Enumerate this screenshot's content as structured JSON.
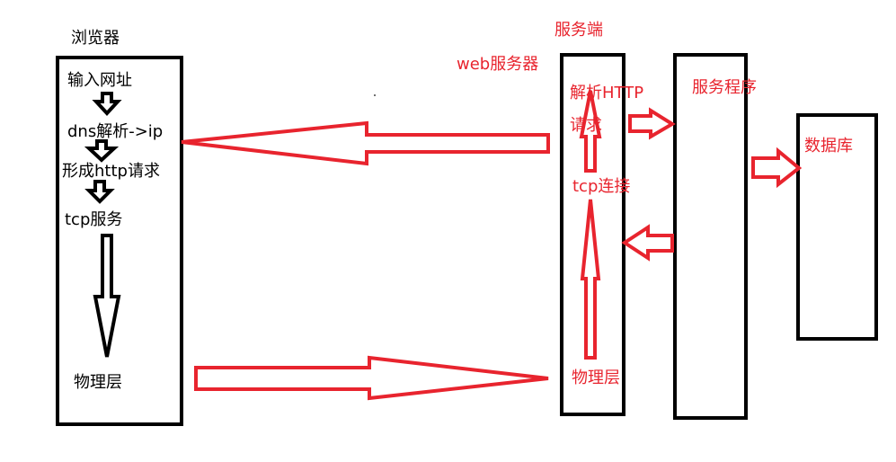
{
  "browser": {
    "title": "浏览器",
    "steps": [
      "输入网址",
      "dns解析->ip",
      "形成http请求",
      "tcp服务"
    ],
    "physical_layer": "物理层"
  },
  "server": {
    "title": "服务端",
    "web_server_label": "web服务器",
    "parse_line1": "解析HTTP",
    "parse_line2": "请求",
    "tcp_connection": "tcp连接",
    "physical_layer": "物理层",
    "service_program": "服务程序",
    "database": "数据库"
  },
  "colors": {
    "accent_red": "#e8242e",
    "outline_black": "#000000"
  }
}
